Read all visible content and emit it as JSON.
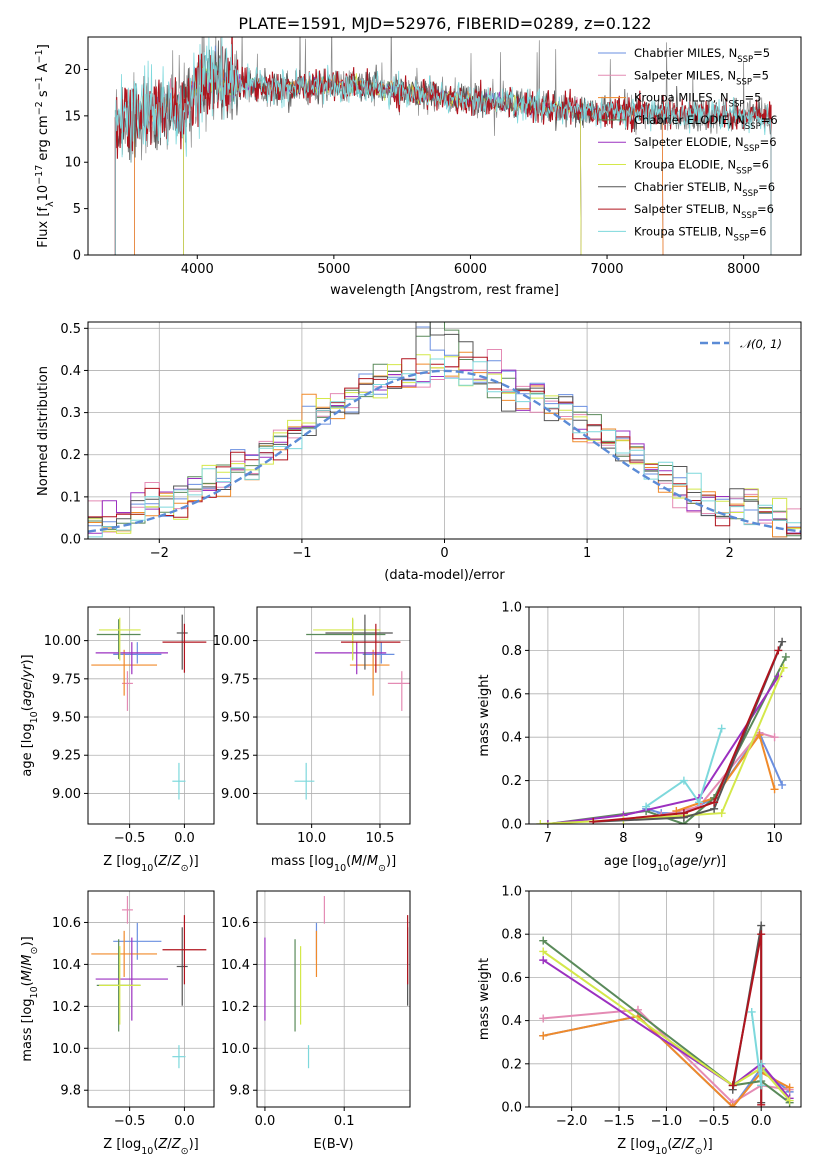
{
  "title": "PLATE=1591, MJD=52976, FIBERID=0289, z=0.122",
  "colors": {
    "Chabrier MILES": "#6a8fe0",
    "Salpeter MILES": "#e48bb4",
    "Kroupa MILES": "#f08a2a",
    "Chabrier ELODIE": "#5a8a5a",
    "Salpeter ELODIE": "#9b30c0",
    "Kroupa ELODIE": "#d4e84a",
    "Chabrier STELIB": "#555555",
    "Salpeter STELIB": "#b0141e",
    "Kroupa STELIB": "#7dd8dc",
    "normal": "#5b8bd6",
    "grid": "#b0b0b0"
  },
  "chart_data": [
    {
      "id": "spectrum",
      "type": "line",
      "xlabel": "wavelength [Angstrom, rest frame]",
      "ylabel": "Flux [f_λ 10^-17 erg cm^-2 s^-1 A^-1]",
      "xlim": [
        3200,
        8420
      ],
      "ylim": [
        0,
        23.5
      ],
      "xticks": [
        4000,
        5000,
        6000,
        7000,
        8000
      ],
      "yticks": [
        0,
        5,
        10,
        15,
        20
      ],
      "grid": false,
      "legend_position": "top-right",
      "legend": [
        {
          "model": "Chabrier MILES",
          "label": "Chabrier MILES, N",
          "sub": "SSP",
          "eq": "=5"
        },
        {
          "model": "Salpeter MILES",
          "label": "Salpeter MILES, N",
          "sub": "SSP",
          "eq": "=5"
        },
        {
          "model": "Kroupa MILES",
          "label": "Kroupa MILES, N",
          "sub": "SSP",
          "eq": "=5"
        },
        {
          "model": "Chabrier ELODIE",
          "label": "Chabrier ELODIE, N",
          "sub": "SSP",
          "eq": "=6"
        },
        {
          "model": "Salpeter ELODIE",
          "label": "Salpeter ELODIE, N",
          "sub": "SSP",
          "eq": "=6"
        },
        {
          "model": "Kroupa ELODIE",
          "label": "Kroupa ELODIE, N",
          "sub": "SSP",
          "eq": "=6"
        },
        {
          "model": "Chabrier STELIB",
          "label": "Chabrier STELIB, N",
          "sub": "SSP",
          "eq": "=6"
        },
        {
          "model": "Salpeter STELIB",
          "label": "Salpeter STELIB, N",
          "sub": "SSP",
          "eq": "=6"
        },
        {
          "model": "Kroupa STELIB",
          "label": "Kroupa STELIB, N",
          "sub": "SSP",
          "eq": "=6"
        }
      ],
      "continuum": [
        [
          3400,
          14.5
        ],
        [
          3600,
          15.0
        ],
        [
          3900,
          16.0
        ],
        [
          4000,
          18.5
        ],
        [
          4100,
          19.0
        ],
        [
          4300,
          18.5
        ],
        [
          4600,
          18.0
        ],
        [
          5000,
          18.3
        ],
        [
          5500,
          17.6
        ],
        [
          6000,
          16.7
        ],
        [
          6500,
          16.0
        ],
        [
          7000,
          15.4
        ],
        [
          7500,
          15.2
        ],
        [
          8000,
          15.0
        ],
        [
          8200,
          14.9
        ]
      ],
      "data_range": [
        3400,
        8200
      ],
      "model_ranges": {
        "Chabrier MILES": [
          3540,
          7410
        ],
        "Salpeter MILES": [
          3540,
          7410
        ],
        "Kroupa MILES": [
          3540,
          7410
        ],
        "Chabrier ELODIE": [
          3900,
          6810
        ],
        "Salpeter ELODIE": [
          3900,
          6810
        ],
        "Kroupa ELODIE": [
          3900,
          6810
        ],
        "Chabrier STELIB": [
          3400,
          8200
        ],
        "Salpeter STELIB": [
          3400,
          8200
        ],
        "Kroupa STELIB": [
          3400,
          8200
        ]
      },
      "ylabel_parts": {
        "a": "Flux [f",
        "sub": "λ",
        "b": "10",
        "sup1": "−17",
        "c": " erg cm",
        "sup2": "−2",
        "d": " s",
        "sup3": "−1",
        "e": " A",
        "sup4": "−1",
        "f": "]"
      }
    },
    {
      "id": "residuals",
      "type": "histogram",
      "xlabel": "(data-model)/error",
      "ylabel": "Normed distribution",
      "xlim": [
        -2.5,
        2.5
      ],
      "ylim": [
        0,
        0.515
      ],
      "xticks": [
        -2,
        -1,
        0,
        1,
        2
      ],
      "yticks": [
        0.0,
        0.1,
        0.2,
        0.3,
        0.4,
        0.5
      ],
      "grid": true,
      "legend_position": "top-right",
      "legend_label": "𝒩(0, 1)",
      "bin_width": 0.1,
      "bin_start": -2.5
    },
    {
      "id": "age-vs-Z",
      "type": "scatter",
      "xlabel": "Z [log10(Z/Z⊙)]",
      "ylabel": "age [log10(age/yr)]",
      "xlim": [
        -0.88,
        0.27
      ],
      "ylim": [
        8.8,
        10.22
      ],
      "xticks": [
        -0.5,
        0.0
      ],
      "yticks": [
        9.0,
        9.25,
        9.5,
        9.75,
        10.0
      ],
      "grid": true
    },
    {
      "id": "age-vs-mass",
      "type": "scatter",
      "xlabel": "mass [log10(M/M⊙)]",
      "ylabel": "",
      "xlim": [
        9.6,
        10.72
      ],
      "ylim": [
        8.8,
        10.22
      ],
      "xticks": [
        10.0,
        10.5
      ],
      "yticks": [
        9.0,
        9.25,
        9.5,
        9.75,
        10.0
      ],
      "grid": true
    },
    {
      "id": "massweight-vs-age",
      "type": "line",
      "xlabel": "age [log10(age/yr)]",
      "ylabel": "mass weight",
      "xlim": [
        6.75,
        10.35
      ],
      "ylim": [
        0,
        1.0
      ],
      "xticks": [
        7,
        8,
        9,
        10
      ],
      "yticks": [
        0.0,
        0.2,
        0.4,
        0.6,
        0.8,
        1.0
      ],
      "grid": true
    },
    {
      "id": "mass-vs-Z",
      "type": "scatter",
      "xlabel": "Z [log10(Z/Z⊙)]",
      "ylabel": "mass [log10(M/M⊙)]",
      "xlim": [
        -0.88,
        0.27
      ],
      "ylim": [
        9.72,
        10.75
      ],
      "xticks": [
        -0.5,
        0.0
      ],
      "yticks": [
        9.8,
        10.0,
        10.2,
        10.4,
        10.6
      ],
      "grid": true
    },
    {
      "id": "mass-vs-EBV",
      "type": "scatter",
      "xlabel": "E(B-V)",
      "ylabel": "",
      "xlim": [
        -0.01,
        0.183
      ],
      "ylim": [
        9.72,
        10.75
      ],
      "xticks": [
        0.0,
        0.1
      ],
      "yticks": [
        9.8,
        10.0,
        10.2,
        10.4,
        10.6
      ],
      "grid": true
    },
    {
      "id": "massweight-vs-Z",
      "type": "line",
      "xlabel": "Z [log10(Z/Z⊙)]",
      "ylabel": "mass weight",
      "xlim": [
        -2.45,
        0.42
      ],
      "ylim": [
        0,
        1.0
      ],
      "xticks": [
        -2.0,
        -1.5,
        -1.0,
        -0.5,
        0.0
      ],
      "yticks": [
        0.0,
        0.2,
        0.4,
        0.6,
        0.8,
        1.0
      ],
      "grid": true
    }
  ],
  "models": [
    {
      "name": "Chabrier MILES",
      "Z": -0.43,
      "Zerr": 0.22,
      "age": 9.91,
      "age_err": [
        0.06,
        0.08
      ],
      "mass": 10.51,
      "mass_err": 0.08,
      "ebv": 0.065,
      "ebv_err": 0.12
    },
    {
      "name": "Salpeter MILES",
      "Z": -0.52,
      "Zerr": 0.05,
      "age": 9.72,
      "age_err": [
        0.18,
        0.08
      ],
      "mass": 10.66,
      "mass_err": 0.06,
      "ebv": 0.075,
      "ebv_err": 0.07
    },
    {
      "name": "Kroupa MILES",
      "Z": -0.55,
      "Zerr": 0.3,
      "age": 9.84,
      "age_err": [
        0.2,
        0.1
      ],
      "mass": 10.45,
      "mass_err": 0.1,
      "ebv": 0.065,
      "ebv_err": 0.08
    },
    {
      "name": "Chabrier ELODIE",
      "Z": -0.6,
      "Zerr": 0.2,
      "age": 10.04,
      "age_err": [
        0.16,
        0.1
      ],
      "mass": 10.3,
      "mass_err": 0.2,
      "ebv": 0.038,
      "ebv_err": 0.14
    },
    {
      "name": "Salpeter ELODIE",
      "Z": -0.48,
      "Zerr": 0.33,
      "age": 9.92,
      "age_err": [
        0.14,
        0.07
      ],
      "mass": 10.33,
      "mass_err": 0.18,
      "ebv": 0.0,
      "ebv_err": 0.18
    },
    {
      "name": "Kroupa ELODIE",
      "Z": -0.59,
      "Zerr": 0.19,
      "age": 10.07,
      "age_err": [
        0.2,
        0.08
      ],
      "mass": 10.3,
      "mass_err": 0.17,
      "ebv": 0.045,
      "ebv_err": 0.14
    },
    {
      "name": "Chabrier STELIB",
      "Z": -0.02,
      "Zerr": 0.05,
      "age": 10.05,
      "age_err": [
        0.24,
        0.12
      ],
      "mass": 10.39,
      "mass_err": 0.17,
      "ebv": 0.18,
      "ebv_err": 0.18
    },
    {
      "name": "Salpeter STELIB",
      "Z": 0.0,
      "Zerr": 0.2,
      "age": 9.99,
      "age_err": [
        0.2,
        0.12
      ],
      "mass": 10.47,
      "mass_err": 0.15,
      "ebv": 0.18,
      "ebv_err": 0.15
    },
    {
      "name": "Kroupa STELIB",
      "Z": -0.05,
      "Zerr": 0.06,
      "age": 9.08,
      "age_err": [
        0.12,
        0.12
      ],
      "mass": 9.96,
      "mass_err": 0.05,
      "ebv": 0.055,
      "ebv_err": 0.06
    }
  ],
  "massweight_age": {
    "Chabrier MILES": [
      [
        8.3,
        0.07
      ],
      [
        8.5,
        0.05
      ],
      [
        8.8,
        0.05
      ],
      [
        9.2,
        0.12
      ],
      [
        9.8,
        0.42
      ],
      [
        10.1,
        0.18
      ]
    ],
    "Salpeter MILES": [
      [
        8.5,
        0.04
      ],
      [
        9.0,
        0.08
      ],
      [
        9.8,
        0.42
      ],
      [
        10.0,
        0.4
      ]
    ],
    "Kroupa MILES": [
      [
        8.7,
        0.06
      ],
      [
        9.2,
        0.12
      ],
      [
        9.8,
        0.41
      ],
      [
        10.0,
        0.16
      ]
    ],
    "Chabrier ELODIE": [
      [
        7.0,
        0.0
      ],
      [
        8.3,
        0.06
      ],
      [
        8.8,
        0.0
      ],
      [
        9.2,
        0.12
      ],
      [
        10.15,
        0.77
      ]
    ],
    "Salpeter ELODIE": [
      [
        7.0,
        0.0
      ],
      [
        8.0,
        0.04
      ],
      [
        9.0,
        0.12
      ],
      [
        10.05,
        0.68
      ]
    ],
    "Kroupa ELODIE": [
      [
        6.9,
        0.0
      ],
      [
        8.0,
        0.02
      ],
      [
        9.3,
        0.05
      ],
      [
        10.12,
        0.72
      ]
    ],
    "Chabrier STELIB": [
      [
        7.6,
        0.01
      ],
      [
        8.8,
        0.03
      ],
      [
        9.2,
        0.07
      ],
      [
        10.1,
        0.84
      ]
    ],
    "Salpeter STELIB": [
      [
        7.6,
        0.01
      ],
      [
        8.8,
        0.05
      ],
      [
        9.2,
        0.1
      ],
      [
        10.05,
        0.8
      ]
    ],
    "Kroupa STELIB": [
      [
        8.3,
        0.08
      ],
      [
        8.8,
        0.2
      ],
      [
        9.0,
        0.1
      ],
      [
        9.3,
        0.44
      ]
    ]
  },
  "massweight_Z": {
    "Chabrier MILES": [
      [
        -2.3,
        0.33
      ],
      [
        -1.3,
        0.42
      ],
      [
        -0.3,
        0.0
      ],
      [
        0.0,
        0.18
      ],
      [
        0.3,
        0.07
      ]
    ],
    "Salpeter MILES": [
      [
        -2.3,
        0.41
      ],
      [
        -1.3,
        0.45
      ],
      [
        -0.3,
        0.02
      ],
      [
        0.0,
        0.1
      ],
      [
        0.3,
        0.08
      ]
    ],
    "Kroupa MILES": [
      [
        -2.3,
        0.33
      ],
      [
        -1.3,
        0.42
      ],
      [
        -0.3,
        0.0
      ],
      [
        0.0,
        0.16
      ],
      [
        0.3,
        0.09
      ]
    ],
    "Chabrier ELODIE": [
      [
        -2.3,
        0.77
      ],
      [
        -0.3,
        0.1
      ],
      [
        0.0,
        0.12
      ],
      [
        0.3,
        0.02
      ]
    ],
    "Salpeter ELODIE": [
      [
        -2.3,
        0.68
      ],
      [
        -0.3,
        0.1
      ],
      [
        0.0,
        0.2
      ],
      [
        0.3,
        0.04
      ]
    ],
    "Kroupa ELODIE": [
      [
        -2.3,
        0.72
      ],
      [
        -0.3,
        0.1
      ],
      [
        0.0,
        0.18
      ],
      [
        0.3,
        0.03
      ]
    ],
    "Chabrier STELIB": [
      [
        -0.3,
        0.08
      ],
      [
        0.0,
        0.84
      ],
      [
        0.0,
        0.02
      ]
    ],
    "Salpeter STELIB": [
      [
        -0.3,
        0.1
      ],
      [
        0.0,
        0.8
      ],
      [
        0.0,
        0.01
      ]
    ],
    "Kroupa STELIB": [
      [
        -0.1,
        0.44
      ],
      [
        0.0,
        0.1
      ],
      [
        0.0,
        0.2
      ]
    ]
  }
}
